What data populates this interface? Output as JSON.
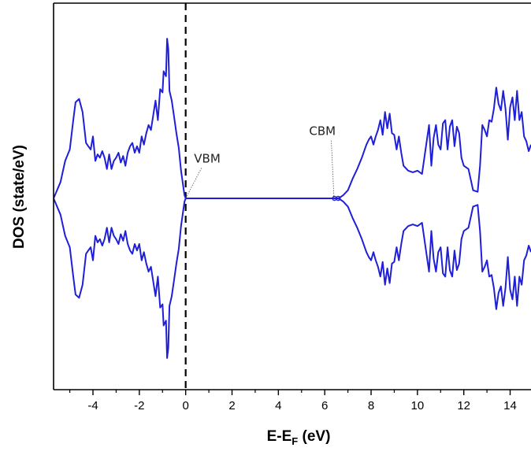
{
  "chart_data": {
    "type": "line",
    "title": "",
    "xlabel": "E-E",
    "xlabel_subscript": "F",
    "xlabel_unit": " (eV)",
    "ylabel": "DOS (state/eV)",
    "xlim": [
      -5.7,
      14.9
    ],
    "ylim": [
      -1.0,
      1.0
    ],
    "x_ticks": [
      -4,
      -2,
      0,
      2,
      4,
      6,
      8,
      10,
      12,
      14
    ],
    "x_tick_labels": [
      "-4",
      "-2",
      "0",
      "2",
      "4",
      "6",
      "8",
      "10",
      "12",
      "14"
    ],
    "y_ticks_shown": false,
    "grid": false,
    "legend": "none",
    "fermi_level": 0,
    "series": [
      {
        "color": "#1f1fd8",
        "mirrored": true,
        "x": [
          -5.7,
          -5.4,
          -5.2,
          -5.0,
          -4.85,
          -4.75,
          -4.6,
          -4.45,
          -4.3,
          -4.2,
          -4.1,
          -4.0,
          -3.9,
          -3.8,
          -3.7,
          -3.6,
          -3.5,
          -3.4,
          -3.3,
          -3.2,
          -3.1,
          -3.0,
          -2.9,
          -2.8,
          -2.7,
          -2.6,
          -2.5,
          -2.4,
          -2.3,
          -2.2,
          -2.1,
          -2.0,
          -1.9,
          -1.8,
          -1.7,
          -1.6,
          -1.5,
          -1.4,
          -1.3,
          -1.2,
          -1.1,
          -1.0,
          -0.95,
          -0.85,
          -0.8,
          -0.75,
          -0.7,
          -0.6,
          -0.5,
          -0.4,
          -0.3,
          -0.2,
          -0.1,
          -0.05,
          0.0,
          0.5,
          1.0,
          2.0,
          3.0,
          4.0,
          5.0,
          6.0,
          6.2,
          6.4,
          6.5,
          6.6,
          6.8,
          7.0,
          7.2,
          7.4,
          7.6,
          7.8,
          7.9,
          8.0,
          8.1,
          8.2,
          8.3,
          8.4,
          8.5,
          8.6,
          8.7,
          8.8,
          8.9,
          9.0,
          9.1,
          9.2,
          9.3,
          9.4,
          9.6,
          9.8,
          10.0,
          10.2,
          10.4,
          10.5,
          10.6,
          10.7,
          10.8,
          10.9,
          11.0,
          11.1,
          11.2,
          11.3,
          11.4,
          11.5,
          11.6,
          11.7,
          11.8,
          11.9,
          12.0,
          12.2,
          12.4,
          12.6,
          12.7,
          12.8,
          12.9,
          13.0,
          13.1,
          13.2,
          13.3,
          13.4,
          13.5,
          13.6,
          13.7,
          13.8,
          13.9,
          14.0,
          14.1,
          14.2,
          14.3,
          14.4,
          14.5,
          14.6,
          14.7,
          14.8,
          14.9
        ],
        "y": [
          0.0,
          0.1,
          0.23,
          0.3,
          0.48,
          0.59,
          0.61,
          0.53,
          0.34,
          0.32,
          0.3,
          0.38,
          0.23,
          0.27,
          0.25,
          0.29,
          0.25,
          0.18,
          0.27,
          0.18,
          0.23,
          0.25,
          0.28,
          0.22,
          0.26,
          0.2,
          0.28,
          0.32,
          0.34,
          0.28,
          0.32,
          0.28,
          0.38,
          0.33,
          0.4,
          0.45,
          0.42,
          0.51,
          0.6,
          0.48,
          0.67,
          0.65,
          0.78,
          0.75,
          0.98,
          0.92,
          0.66,
          0.6,
          0.5,
          0.4,
          0.31,
          0.17,
          0.07,
          0.02,
          0.0,
          0.0,
          0.0,
          0.0,
          0.0,
          0.0,
          0.0,
          0.0,
          0.0,
          0.0,
          0.0,
          0.0,
          0.02,
          0.05,
          0.12,
          0.18,
          0.25,
          0.33,
          0.36,
          0.38,
          0.33,
          0.38,
          0.42,
          0.48,
          0.39,
          0.53,
          0.43,
          0.52,
          0.4,
          0.39,
          0.3,
          0.38,
          0.28,
          0.2,
          0.17,
          0.16,
          0.17,
          0.15,
          0.35,
          0.45,
          0.2,
          0.37,
          0.45,
          0.33,
          0.3,
          0.46,
          0.48,
          0.3,
          0.44,
          0.48,
          0.32,
          0.44,
          0.4,
          0.25,
          0.2,
          0.18,
          0.05,
          0.04,
          0.2,
          0.45,
          0.42,
          0.38,
          0.48,
          0.47,
          0.55,
          0.68,
          0.58,
          0.54,
          0.66,
          0.55,
          0.36,
          0.56,
          0.62,
          0.48,
          0.66,
          0.48,
          0.53,
          0.38,
          0.35,
          0.29,
          0.33
        ]
      }
    ],
    "annotations": [
      {
        "text": "VBM",
        "x": 0.0,
        "y": 0.0,
        "label_x": 0.7,
        "label_y": 0.22
      },
      {
        "text": "CBM",
        "x": 6.4,
        "y": 0.0,
        "label_x": 5.6,
        "label_y": 0.39
      }
    ]
  }
}
